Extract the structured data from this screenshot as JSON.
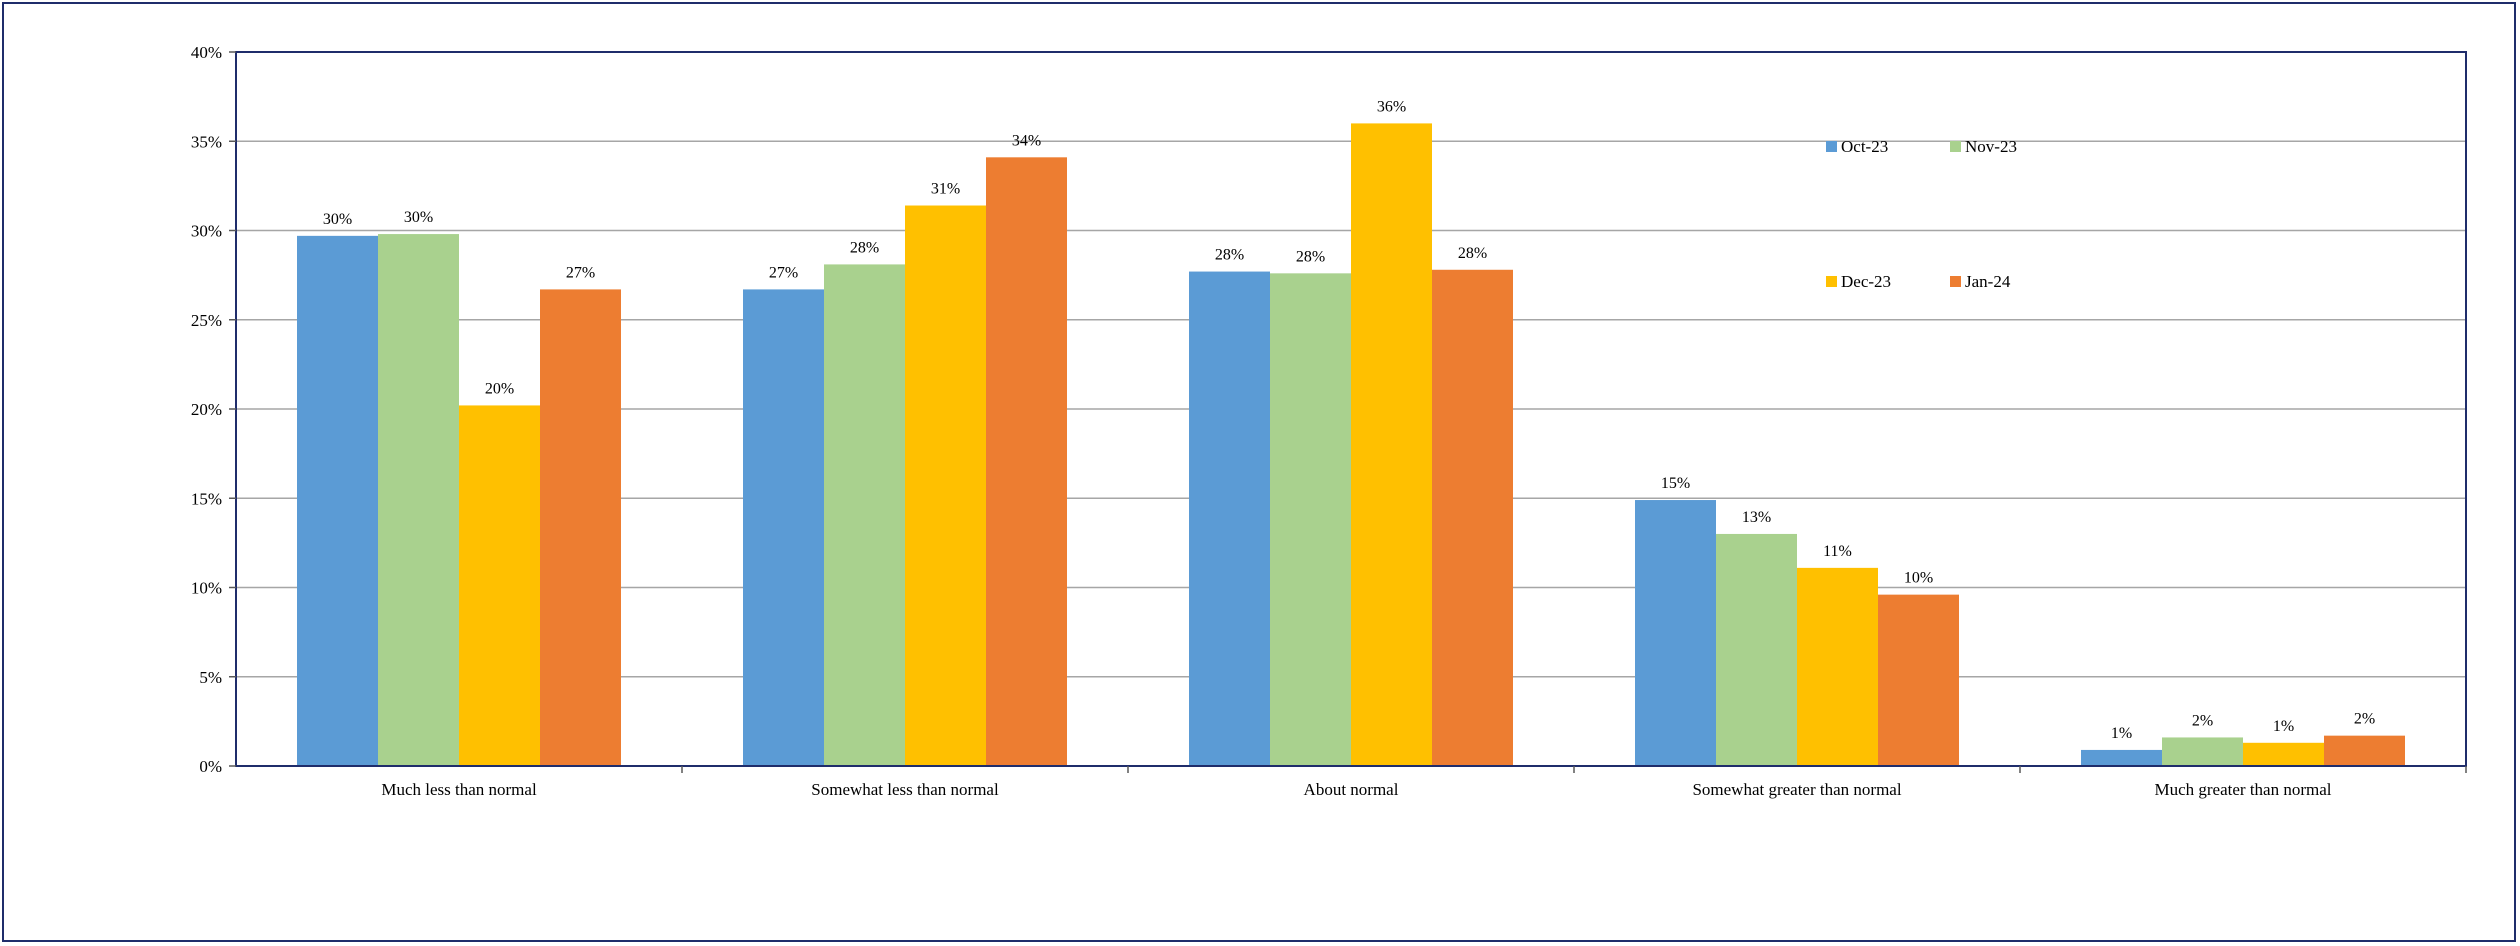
{
  "chart_data": {
    "type": "bar",
    "categories": [
      "Much less than normal",
      "Somewhat less than normal",
      "About normal",
      "Somewhat greater than normal",
      "Much greater than normal"
    ],
    "series": [
      {
        "name": "Oct-23",
        "color": "#5b9bd5",
        "values": [
          29.7,
          26.7,
          27.7,
          14.9,
          0.9
        ],
        "labels": [
          "30%",
          "27%",
          "28%",
          "15%",
          "1%"
        ]
      },
      {
        "name": "Nov-23",
        "color": "#a9d18e",
        "values": [
          29.8,
          28.1,
          27.6,
          13.0,
          1.6
        ],
        "labels": [
          "30%",
          "28%",
          "28%",
          "13%",
          "2%"
        ]
      },
      {
        "name": "Dec-23",
        "color": "#ffc000",
        "values": [
          20.2,
          31.4,
          36.0,
          11.1,
          1.3
        ],
        "labels": [
          "20%",
          "31%",
          "36%",
          "11%",
          "1%"
        ]
      },
      {
        "name": "Jan-24",
        "color": "#ed7d31",
        "values": [
          26.7,
          34.1,
          27.8,
          9.6,
          1.7
        ],
        "labels": [
          "27%",
          "34%",
          "28%",
          "10%",
          "2%"
        ]
      }
    ],
    "y_ticks": [
      "0%",
      "5%",
      "10%",
      "15%",
      "20%",
      "25%",
      "30%",
      "35%",
      "40%"
    ],
    "ylim": [
      0,
      40
    ],
    "grid": true,
    "legend_position": "top-right",
    "title": "",
    "xlabel": "",
    "ylabel": ""
  },
  "colors": {
    "plot_border": "#1f2d6b",
    "gridline": "#a6a6a6",
    "frame_border": "#1f2d6b"
  }
}
